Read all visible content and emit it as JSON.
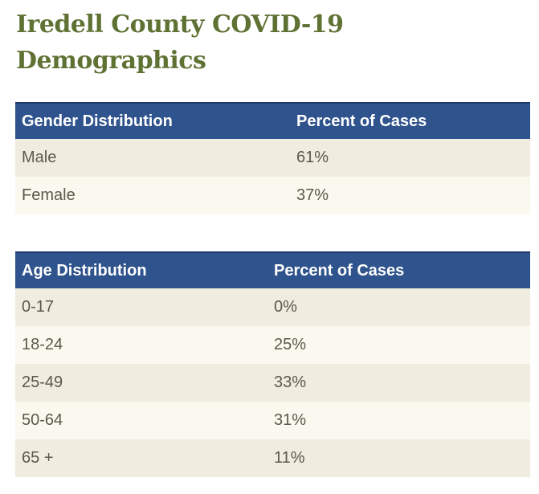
{
  "title": "Iredell County COVID-19 Demographics",
  "gender_table": {
    "headers": [
      "Gender Distribution",
      "Percent of Cases"
    ],
    "rows": [
      [
        "Male",
        "61%"
      ],
      [
        "Female",
        "37%"
      ]
    ]
  },
  "age_table": {
    "headers": [
      "Age Distribution",
      "Percent of Cases"
    ],
    "rows": [
      [
        "0-17",
        "0%"
      ],
      [
        "18-24",
        "25%"
      ],
      [
        "25-49",
        "33%"
      ],
      [
        "50-64",
        "31%"
      ],
      [
        "65 +",
        "11%"
      ]
    ]
  },
  "colors": {
    "title": "#5f7234",
    "header_background": "#2f538c",
    "row_odd": "#f0ecdf",
    "row_even": "#faf8ef"
  }
}
